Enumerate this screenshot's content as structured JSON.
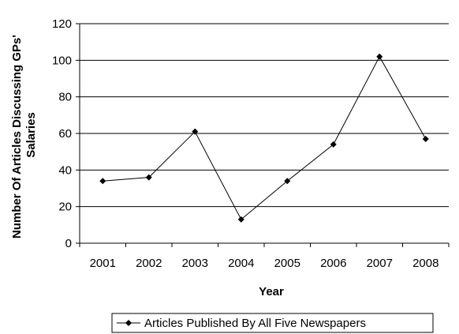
{
  "chart_data": {
    "type": "line",
    "categories": [
      "2001",
      "2002",
      "2003",
      "2004",
      "2005",
      "2006",
      "2007",
      "2008"
    ],
    "series": [
      {
        "name": "Articles Published By All Five Newspapers",
        "values": [
          34,
          36,
          61,
          13,
          34,
          54,
          102,
          57
        ],
        "color": "#000000",
        "marker": "diamond"
      }
    ],
    "xlabel": "Year",
    "ylabel_lines": [
      "Number Of Articles Discussing GPs'",
      "Salaries"
    ],
    "ylim": [
      0,
      120
    ],
    "yticks": [
      0,
      20,
      40,
      60,
      80,
      100,
      120
    ],
    "grid": true,
    "legend_position": "bottom"
  }
}
